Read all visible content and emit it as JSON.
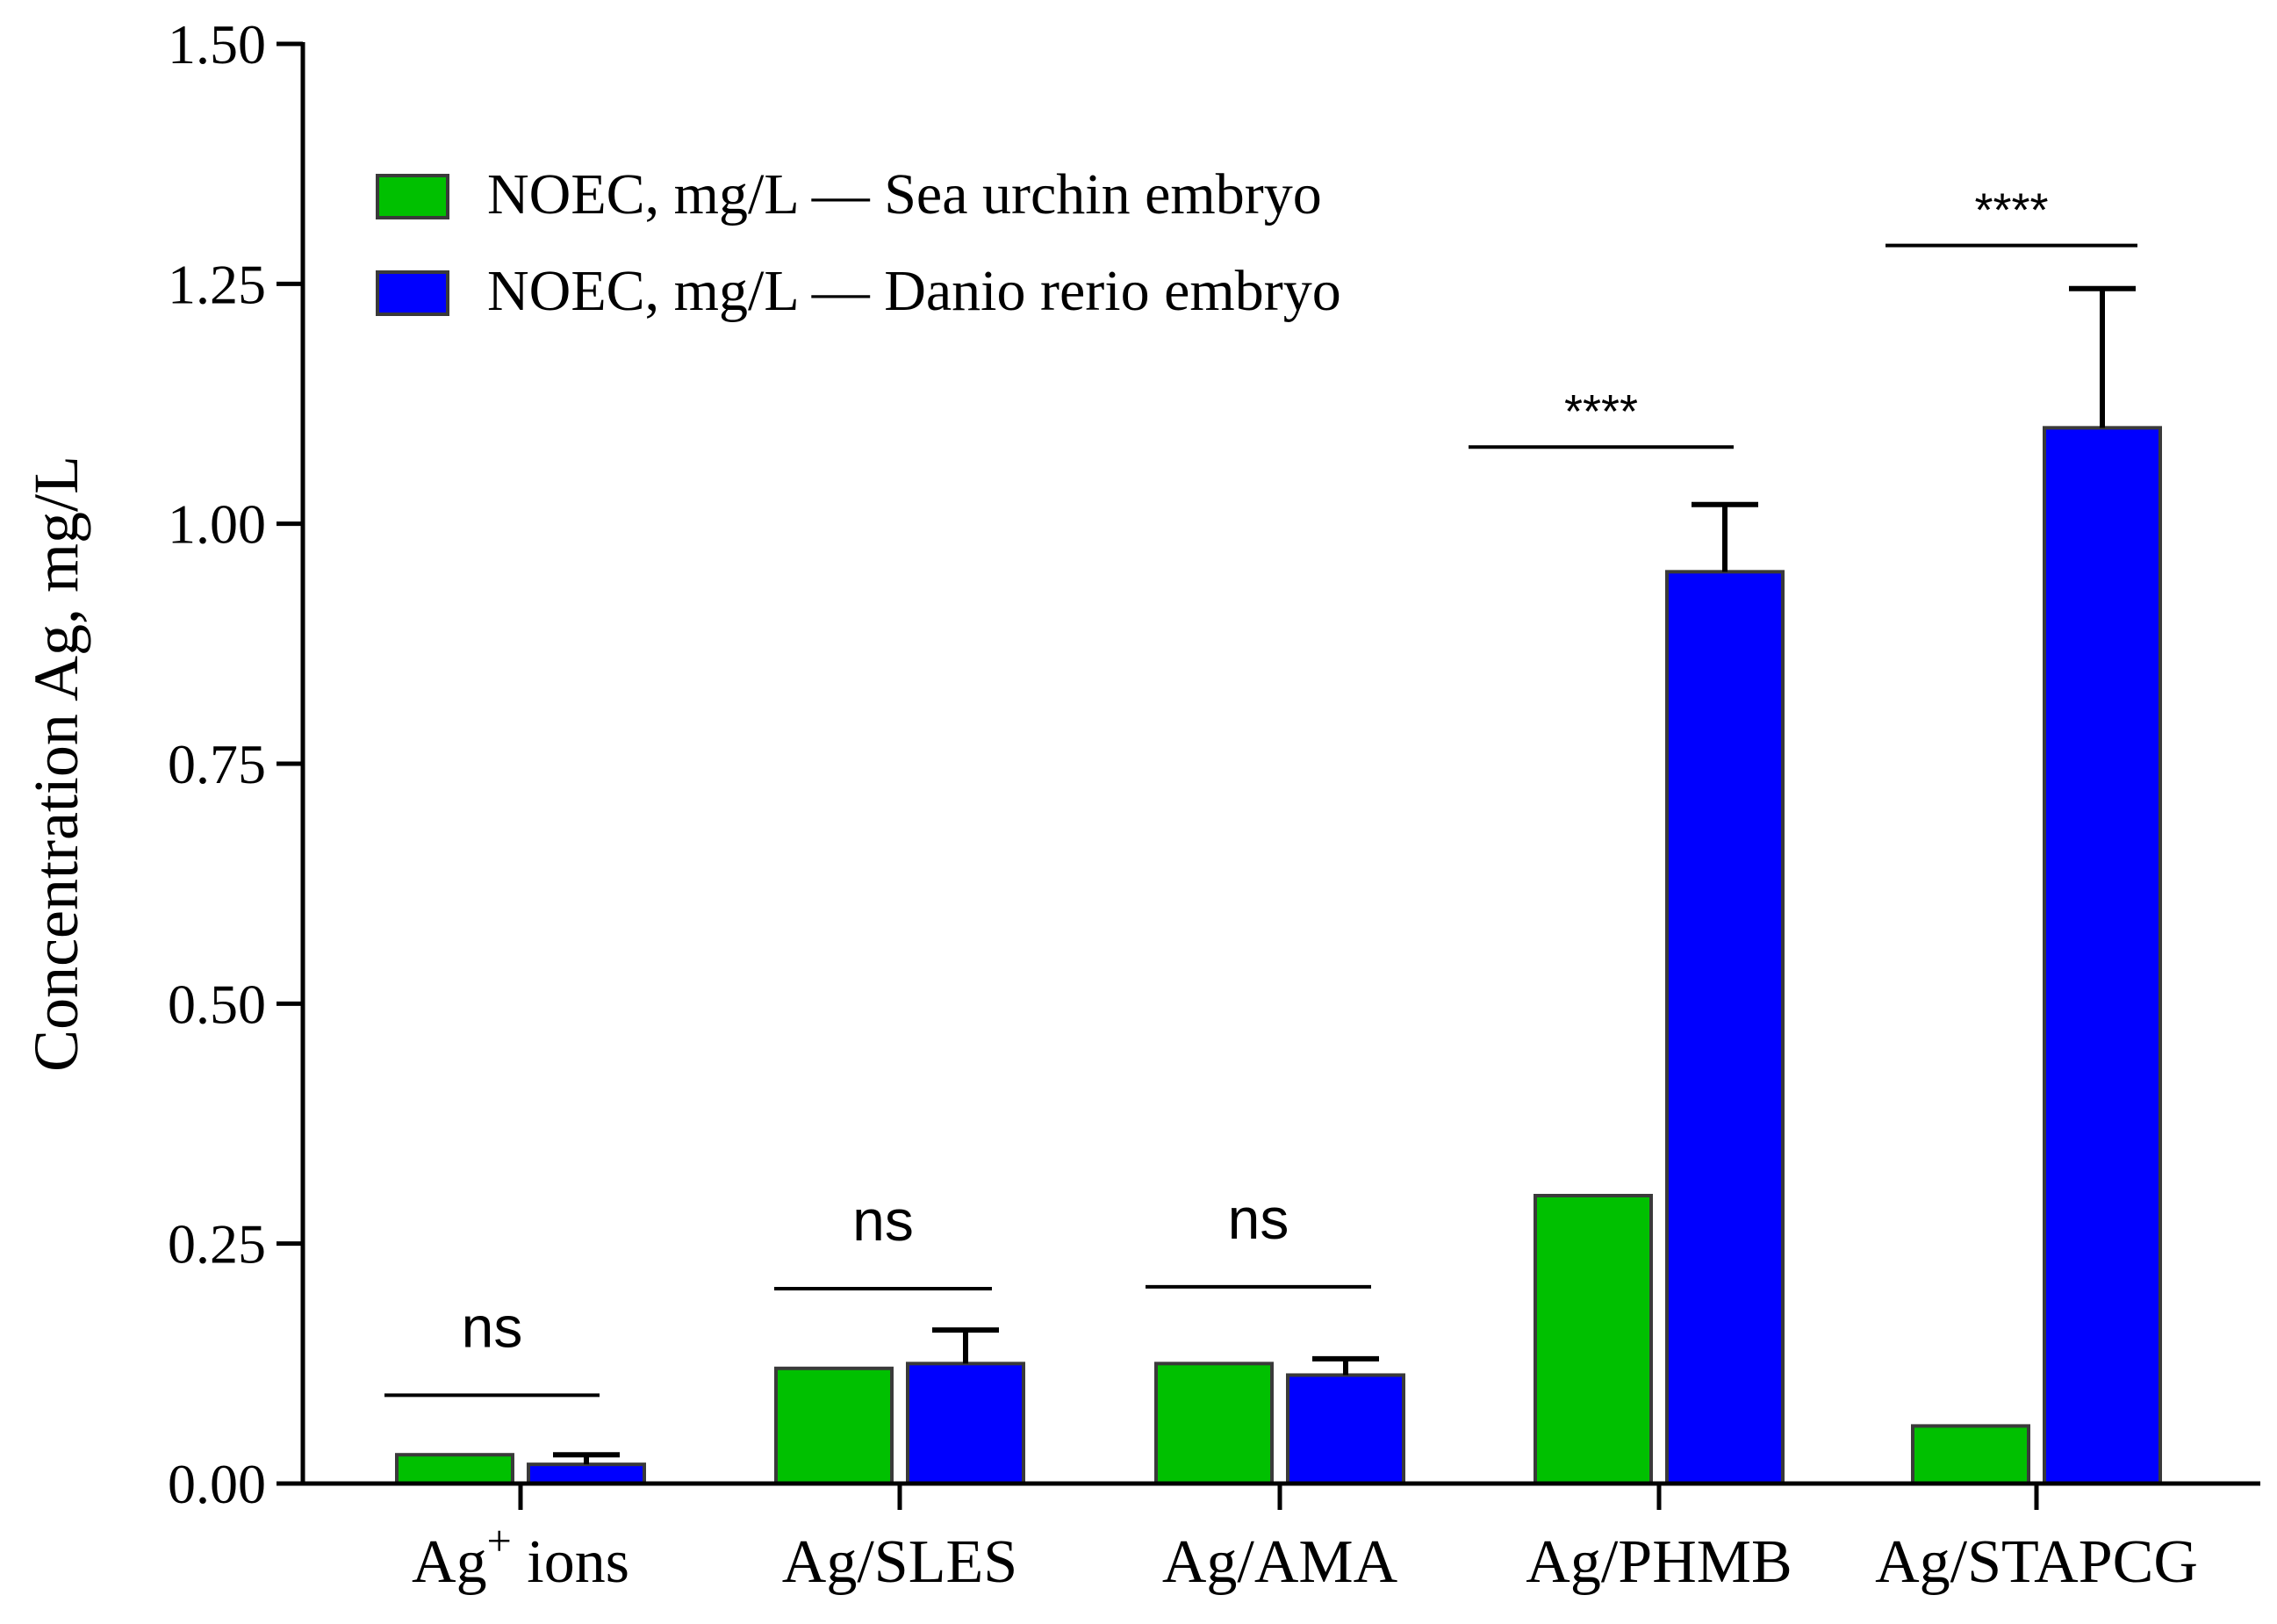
{
  "chart_data": {
    "type": "bar",
    "title": "",
    "xlabel": "",
    "ylabel": "Concentration Ag, mg/L",
    "ylim": [
      0,
      1.5
    ],
    "yticks": [
      "0.00",
      "0.25",
      "0.50",
      "0.75",
      "1.00",
      "1.25",
      "1.50"
    ],
    "ytick_values": [
      0,
      0.25,
      0.5,
      0.75,
      1.0,
      1.25,
      1.5
    ],
    "categories": [
      {
        "base": "Ag",
        "sup": "+",
        "rest": " ions"
      },
      {
        "base": "Ag/SLES",
        "sup": "",
        "rest": ""
      },
      {
        "base": "Ag/AMA",
        "sup": "",
        "rest": ""
      },
      {
        "base": "Ag/PHMB",
        "sup": "",
        "rest": ""
      },
      {
        "base": "Ag/STAPCG",
        "sup": "",
        "rest": ""
      }
    ],
    "series": [
      {
        "name": "NOEC, mg/L — Sea urchin embryo",
        "color": "#00c000",
        "values": [
          0.03,
          0.12,
          0.125,
          0.3,
          0.06
        ],
        "errors": [
          0,
          0,
          0,
          0,
          0
        ]
      },
      {
        "name": "NOEC, mg/L — Danio rerio embryo",
        "color": "#0000ff",
        "values": [
          0.02,
          0.125,
          0.113,
          0.95,
          1.1
        ],
        "errors": [
          0.01,
          0.035,
          0.017,
          0.07,
          0.145
        ]
      }
    ],
    "significance": [
      {
        "label": "ns",
        "level": 0.092
      },
      {
        "label": "ns",
        "level": 0.203
      },
      {
        "label": "ns",
        "level": 0.205
      },
      {
        "label": "****",
        "level": 1.08
      },
      {
        "label": "****",
        "level": 1.29
      }
    ],
    "legend": {
      "position": "top-left"
    }
  }
}
